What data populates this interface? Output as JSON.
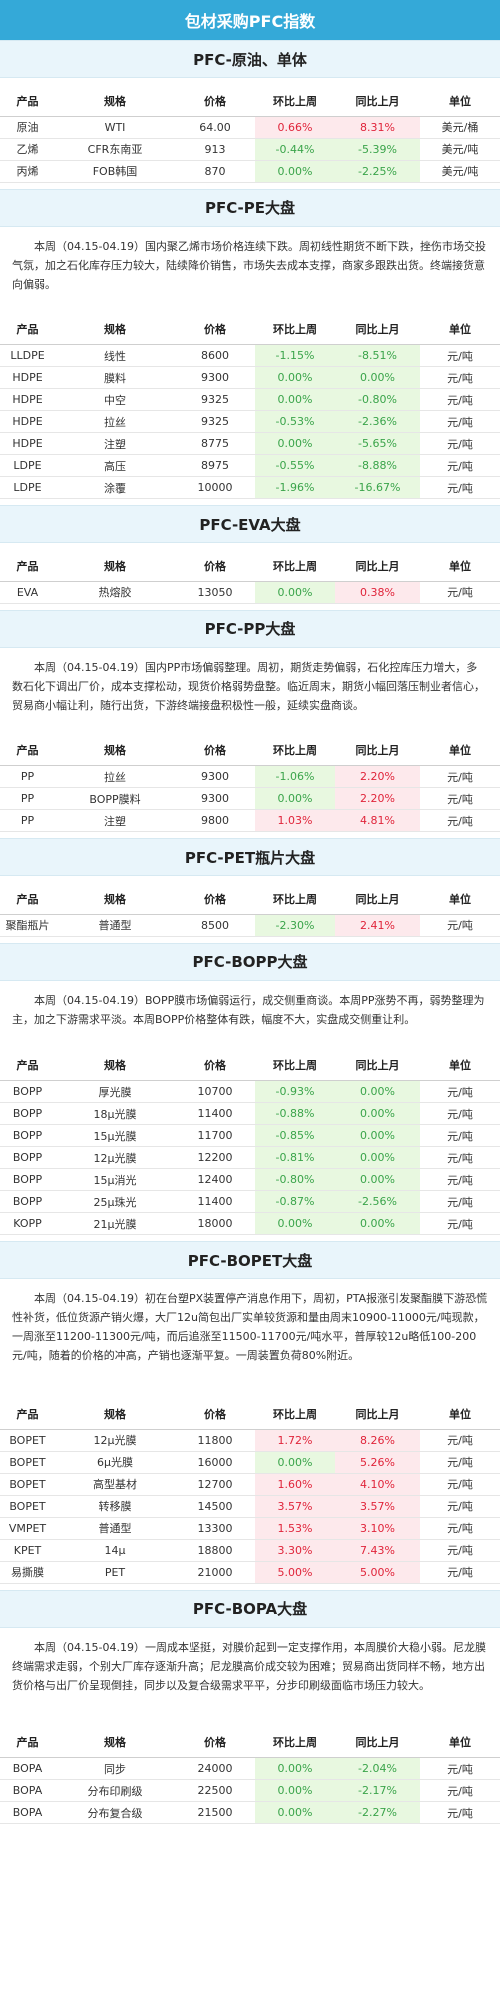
{
  "page_title": "包材采购PFC指数",
  "header_cols": [
    "产品",
    "规格",
    "价格",
    "环比上周",
    "同比上月",
    "单位"
  ],
  "sections": [
    {
      "title": "PFC-原油、单体",
      "paragraph": "",
      "rows": [
        [
          "原油",
          "WTI",
          "64.00",
          "0.66%",
          "8.31%",
          "美元/桶"
        ],
        [
          "乙烯",
          "CFR东南亚",
          "913",
          "-0.44%",
          "-5.39%",
          "美元/吨"
        ],
        [
          "丙烯",
          "FOB韩国",
          "870",
          "0.00%",
          "-2.25%",
          "美元/吨"
        ]
      ]
    },
    {
      "title": "PFC-PE大盘",
      "paragraph": "本周（04.15-04.19）国内聚乙烯市场价格连续下跌。周初线性期货不断下跌，挫伤市场交投气氛，加之石化库存压力较大，陆续降价销售，市场失去成本支撑，商家多跟跌出货。终端接货意向偏弱。",
      "rows": [
        [
          "LLDPE",
          "线性",
          "8600",
          "-1.15%",
          "-8.51%",
          "元/吨"
        ],
        [
          "HDPE",
          "膜料",
          "9300",
          "0.00%",
          "0.00%",
          "元/吨"
        ],
        [
          "HDPE",
          "中空",
          "9325",
          "0.00%",
          "-0.80%",
          "元/吨"
        ],
        [
          "HDPE",
          "拉丝",
          "9325",
          "-0.53%",
          "-2.36%",
          "元/吨"
        ],
        [
          "HDPE",
          "注塑",
          "8775",
          "0.00%",
          "-5.65%",
          "元/吨"
        ],
        [
          "LDPE",
          "高压",
          "8975",
          "-0.55%",
          "-8.88%",
          "元/吨"
        ],
        [
          "LDPE",
          "涂覆",
          "10000",
          "-1.96%",
          "-16.67%",
          "元/吨"
        ]
      ]
    },
    {
      "title": "PFC-EVA大盘",
      "paragraph": "",
      "rows": [
        [
          "EVA",
          "热熔胶",
          "13050",
          "0.00%",
          "0.38%",
          "元/吨"
        ]
      ]
    },
    {
      "title": "PFC-PP大盘",
      "paragraph": "本周（04.15-04.19）国内PP市场偏弱整理。周初，期货走势偏弱，石化控库压力增大，多数石化下调出厂价，成本支撑松动，现货价格弱势盘整。临近周末，期货小幅回落压制业者信心，贸易商小幅让利，随行出货，下游终端接盘积极性一般，延续实盘商谈。",
      "rows": [
        [
          "PP",
          "拉丝",
          "9300",
          "-1.06%",
          "2.20%",
          "元/吨"
        ],
        [
          "PP",
          "BOPP膜料",
          "9300",
          "0.00%",
          "2.20%",
          "元/吨"
        ],
        [
          "PP",
          "注塑",
          "9800",
          "1.03%",
          "4.81%",
          "元/吨"
        ]
      ]
    },
    {
      "title": "PFC-PET瓶片大盘",
      "paragraph": "",
      "rows": [
        [
          "聚酯瓶片",
          "普通型",
          "8500",
          "-2.30%",
          "2.41%",
          "元/吨"
        ]
      ]
    },
    {
      "title": "PFC-BOPP大盘",
      "paragraph": "本周（04.15-04.19）BOPP膜市场偏弱运行，成交侧重商谈。本周PP涨势不再，弱势整理为主，加之下游需求平淡。本周BOPP价格整体有跌，幅度不大，实盘成交侧重让利。",
      "rows": [
        [
          "BOPP",
          "厚光膜",
          "10700",
          "-0.93%",
          "0.00%",
          "元/吨"
        ],
        [
          "BOPP",
          "18μ光膜",
          "11400",
          "-0.88%",
          "0.00%",
          "元/吨"
        ],
        [
          "BOPP",
          "15μ光膜",
          "11700",
          "-0.85%",
          "0.00%",
          "元/吨"
        ],
        [
          "BOPP",
          "12μ光膜",
          "12200",
          "-0.81%",
          "0.00%",
          "元/吨"
        ],
        [
          "BOPP",
          "15μ消光",
          "12400",
          "-0.80%",
          "0.00%",
          "元/吨"
        ],
        [
          "BOPP",
          "25μ珠光",
          "11400",
          "-0.87%",
          "-2.56%",
          "元/吨"
        ],
        [
          "KOPP",
          "21μ光膜",
          "18000",
          "0.00%",
          "0.00%",
          "元/吨"
        ]
      ]
    },
    {
      "title": "PFC-BOPET大盘",
      "paragraph": "本周（04.15-04.19）初在台塑PX装置停产消息作用下，周初，PTA报涨引发聚酯膜下游恐慌性补货，低位货源产销火爆，大厂12u简包出厂实单较货源和量由周末10900-11000元/吨现款，一周涨至11200-11300元/吨，而后追涨至11500-11700元/吨水平，普厚较12u略低100-200元/吨，随着的价格的冲高，产销也逐渐平复。一周装置负荷80%附近。",
      "rows": [
        [
          "BOPET",
          "12μ光膜",
          "11800",
          "1.72%",
          "8.26%",
          "元/吨"
        ],
        [
          "BOPET",
          "6μ光膜",
          "16000",
          "0.00%",
          "5.26%",
          "元/吨"
        ],
        [
          "BOPET",
          "高型基材",
          "12700",
          "1.60%",
          "4.10%",
          "元/吨"
        ],
        [
          "BOPET",
          "转移膜",
          "14500",
          "3.57%",
          "3.57%",
          "元/吨"
        ],
        [
          "VMPET",
          "普通型",
          "13300",
          "1.53%",
          "3.10%",
          "元/吨"
        ],
        [
          "KPET",
          "14μ",
          "18800",
          "3.30%",
          "7.43%",
          "元/吨"
        ],
        [
          "易撕膜",
          "PET",
          "21000",
          "5.00%",
          "5.00%",
          "元/吨"
        ]
      ]
    },
    {
      "title": "PFC-BOPA大盘",
      "paragraph": "本周（04.15-04.19）一周成本坚挺，对膜价起到一定支撑作用，本周膜价大稳小弱。尼龙膜终端需求走弱，个别大厂库存逐渐升高；尼龙膜高价成交较为困难；贸易商出货同样不畅，地方出货价格与出厂价呈现倒挂，同步以及复合级需求平平，分步印刷级面临市场压力较大。",
      "rows": [
        [
          "BOPA",
          "同步",
          "24000",
          "0.00%",
          "-2.04%",
          "元/吨"
        ],
        [
          "BOPA",
          "分布印刷级",
          "22500",
          "0.00%",
          "-2.17%",
          "元/吨"
        ],
        [
          "BOPA",
          "分布复合级",
          "21500",
          "0.00%",
          "-2.27%",
          "元/吨"
        ]
      ]
    }
  ],
  "colors": {
    "header_blue": "#34a9d8",
    "up_red": "#e0243a",
    "down_green": "#3aa44a"
  }
}
